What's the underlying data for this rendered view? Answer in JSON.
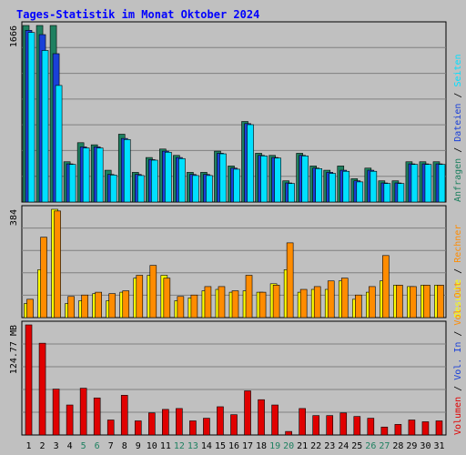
{
  "chart_data": {
    "title": "Tages-Statistik im Monat Oktober 2024",
    "categories": [
      "1",
      "2",
      "3",
      "4",
      "5",
      "6",
      "7",
      "8",
      "9",
      "10",
      "11",
      "12",
      "13",
      "14",
      "15",
      "16",
      "17",
      "18",
      "19",
      "20",
      "21",
      "22",
      "23",
      "24",
      "25",
      "26",
      "27",
      "28",
      "29",
      "30",
      "31"
    ],
    "weekend_days": [
      "5",
      "6",
      "12",
      "13",
      "19",
      "20",
      "26",
      "27"
    ],
    "panels": [
      {
        "type": "bar",
        "y_label": "1666",
        "ylim": [
          0,
          1666
        ],
        "series": [
          {
            "name": "Anfragen",
            "color": "#1e8060",
            "values": [
              1666,
              1666,
              1666,
              380,
              560,
              540,
              300,
              640,
              280,
              420,
              500,
              440,
              280,
              280,
              480,
              340,
              760,
              460,
              440,
              200,
              460,
              340,
              300,
              340,
              220,
              320,
              200,
              200,
              380,
              380,
              380
            ]
          },
          {
            "name": "Dateien",
            "color": "#1a40d8",
            "values": [
              1620,
              1580,
              1400,
              360,
              520,
              520,
              260,
              600,
              260,
              400,
              480,
              420,
              260,
              260,
              460,
              320,
              740,
              440,
              420,
              180,
              440,
              320,
              280,
              300,
              200,
              300,
              180,
              180,
              360,
              360,
              360
            ]
          },
          {
            "name": "Seiten",
            "color": "#00e0ff",
            "values": [
              1600,
              1430,
              1100,
              355,
              510,
              510,
              255,
              590,
              250,
              395,
              470,
              410,
              250,
              250,
              455,
              310,
              730,
              435,
              415,
              175,
              435,
              315,
              270,
              290,
              190,
              290,
              175,
              175,
              355,
              355,
              355
            ]
          }
        ]
      },
      {
        "type": "bar",
        "y_label": "384",
        "ylim": [
          0,
          384
        ],
        "series": [
          {
            "name": "Besuche",
            "color": "#ffff00",
            "values": [
              50,
              170,
              384,
              50,
              60,
              85,
              60,
              90,
              140,
              150,
              150,
              60,
              70,
              95,
              100,
              90,
              95,
              90,
              120,
              170,
              90,
              100,
              100,
              130,
              65,
              90,
              130,
              115,
              110,
              115,
              115
            ]
          },
          {
            "name": "Rechner",
            "color": "#ff8c00",
            "values": [
              65,
              285,
              378,
              75,
              80,
              90,
              85,
              95,
              150,
              185,
              140,
              75,
              80,
              110,
              110,
              95,
              150,
              90,
              115,
              265,
              100,
              110,
              130,
              140,
              80,
              110,
              220,
              115,
              110,
              115,
              115
            ]
          }
        ]
      },
      {
        "type": "bar",
        "y_label": "124.77 MB",
        "ylim": [
          0,
          124.77
        ],
        "series": [
          {
            "name": "Volumen",
            "color": "#e00000",
            "values": [
              124.77,
              104,
              52,
              34,
              53,
              42,
              17,
              45,
              16,
              25,
              29,
              30,
              16,
              19,
              32,
              23,
              50,
              40,
              34,
              4,
              30,
              22,
              22,
              25,
              21,
              19,
              9,
              12,
              17,
              15,
              16
            ]
          },
          {
            "name": "Vol. In",
            "color": "#1a40d8",
            "values": []
          },
          {
            "name": "Vol. Out",
            "color": "#ff8c00",
            "values": []
          }
        ]
      }
    ],
    "right_legend_top": [
      {
        "text": "Anfragen",
        "color": "#1e8060"
      },
      {
        "text": "Dateien",
        "color": "#1a40d8"
      },
      {
        "text": "Seiten",
        "color": "#00e0ff"
      }
    ],
    "right_legend_middle": [
      {
        "text": "Besuche",
        "color": "#ffff00"
      },
      {
        "text": "Rechner",
        "color": "#ff8c00"
      }
    ],
    "right_legend_bottom": [
      {
        "text": "Volumen",
        "color": "#e00000"
      },
      {
        "text": "Vol. In",
        "color": "#1a40d8"
      },
      {
        "text": "Vol. Out",
        "color": "#ff8c00"
      }
    ],
    "colors": {
      "background": "#c0c0c0",
      "title": "#0000ff",
      "grid": "#808080",
      "weekend_label": "#1e8060",
      "weekday_label": "#000000"
    }
  }
}
